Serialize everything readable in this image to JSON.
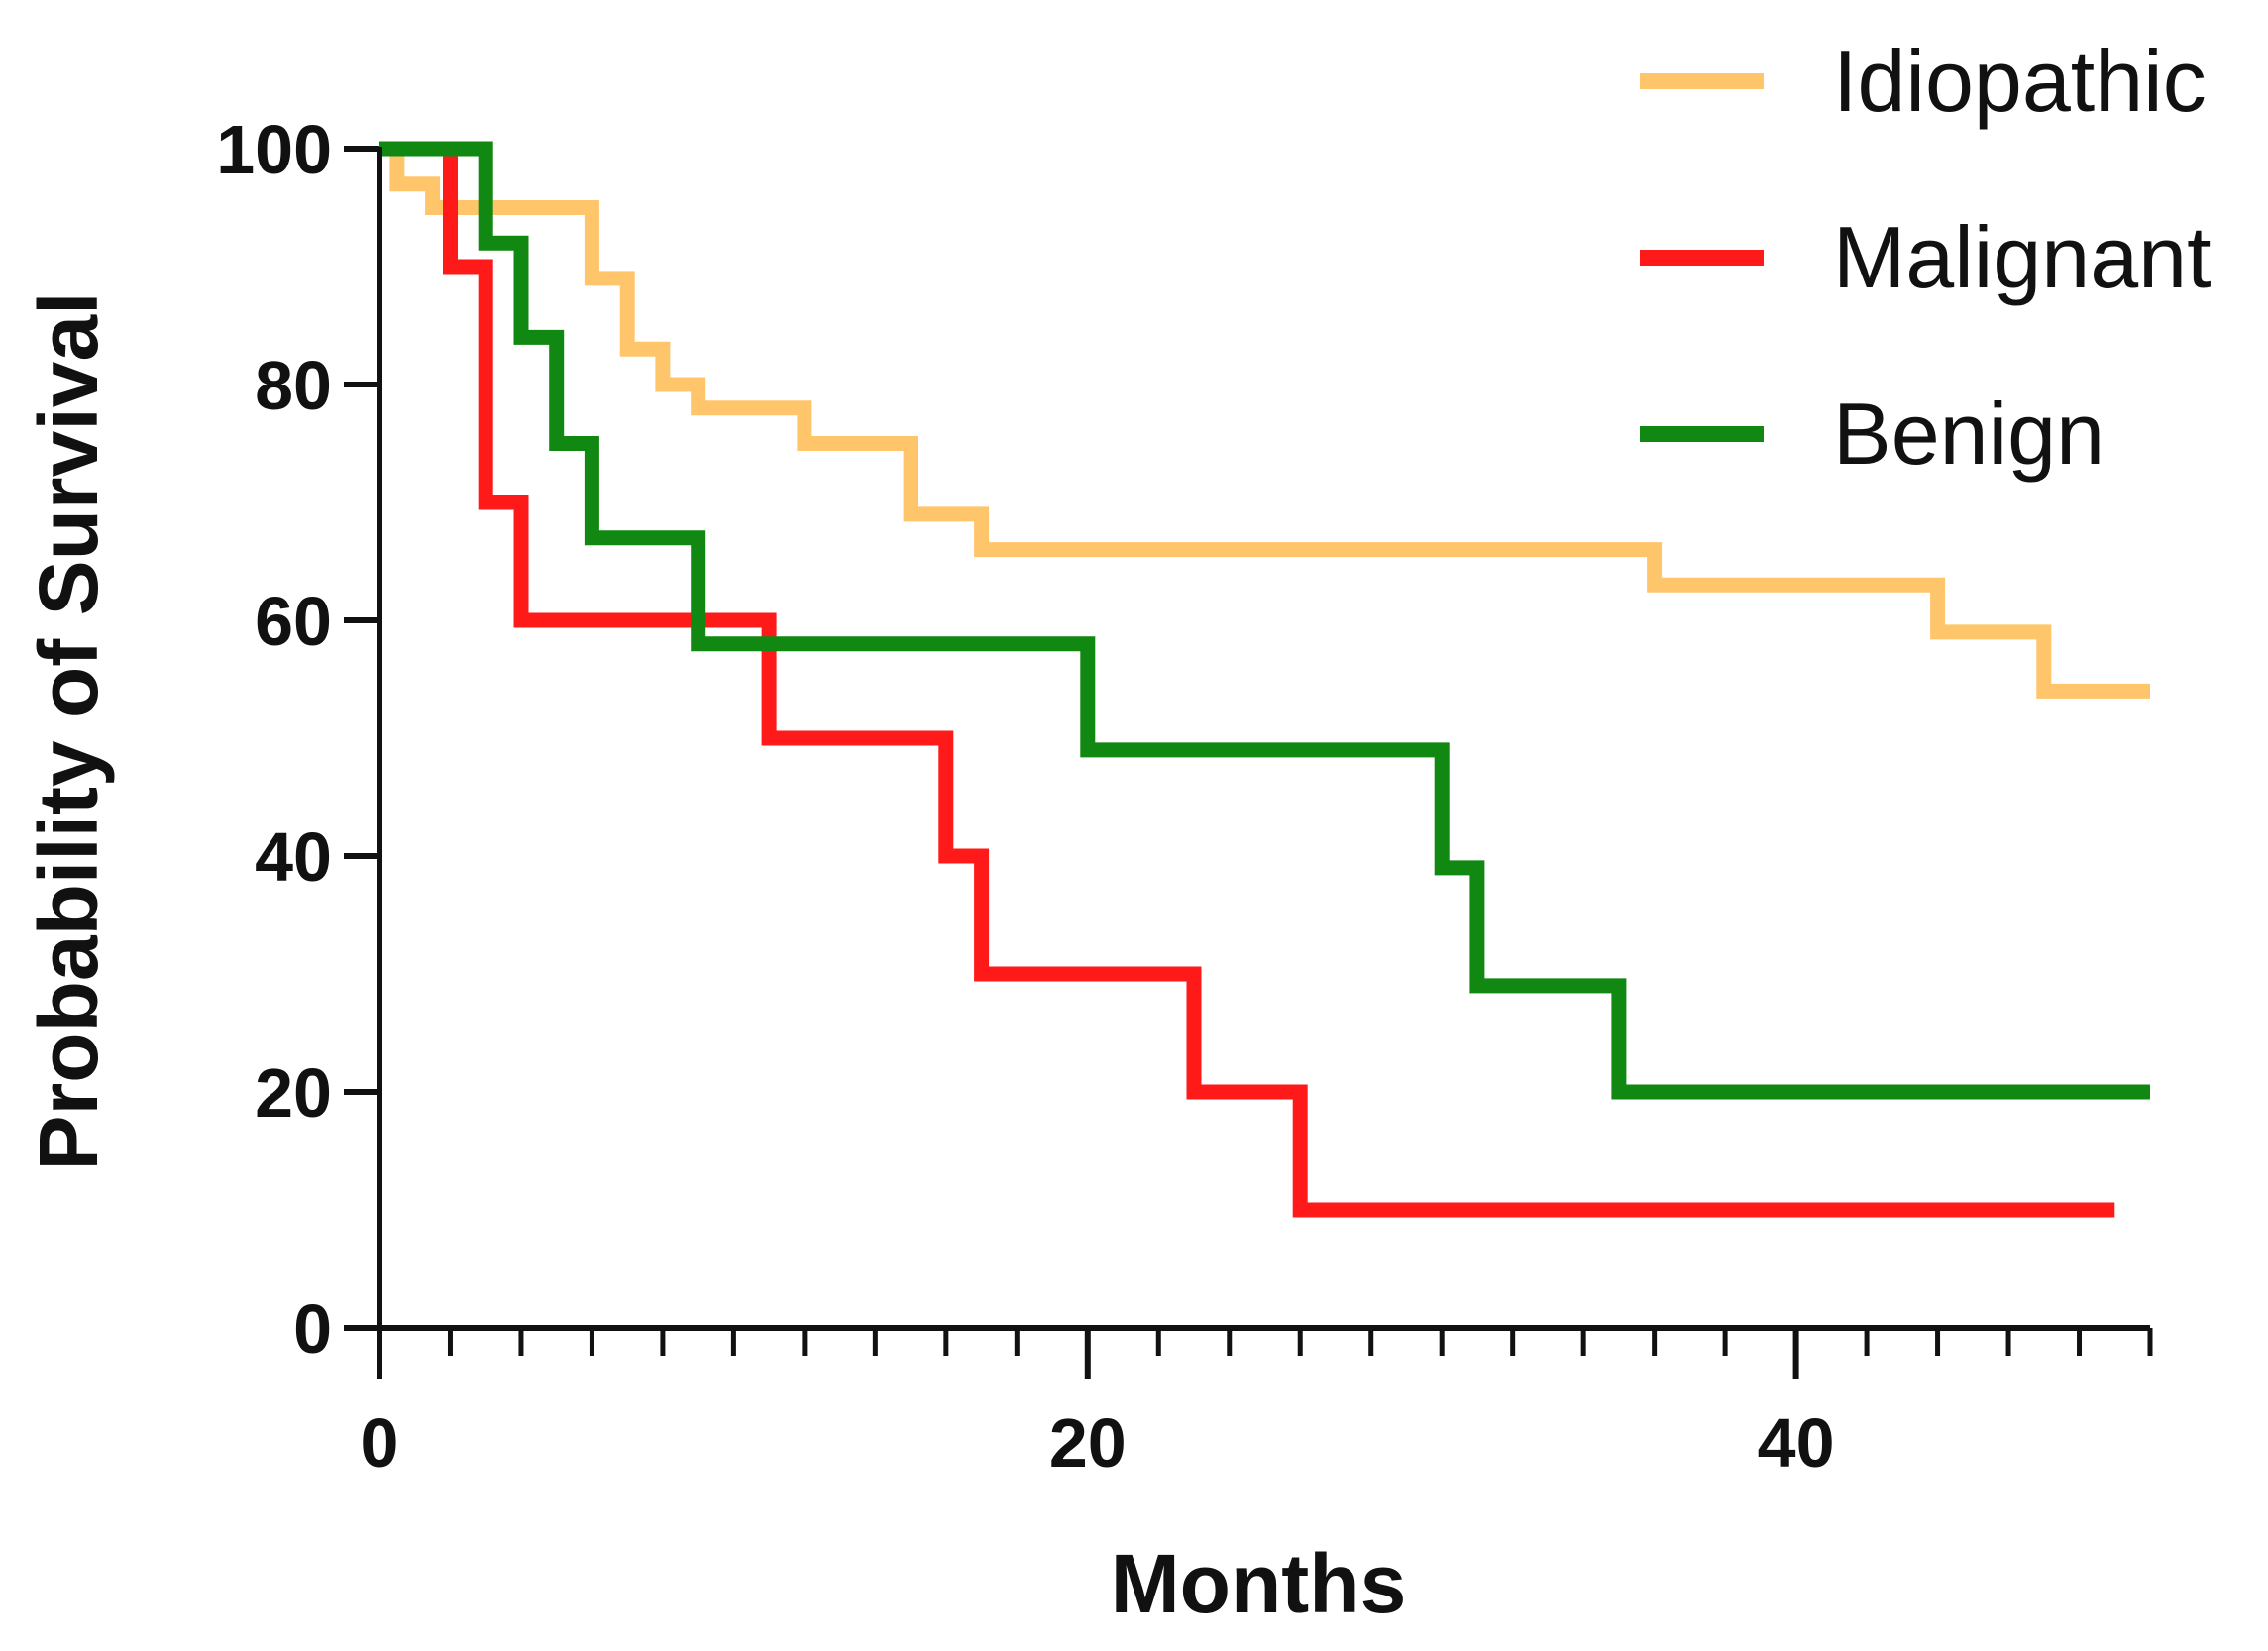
{
  "chart_data": {
    "type": "line",
    "subtype": "kaplan-meier-step",
    "title": "",
    "xlabel": "Months",
    "ylabel": "Probability of Survival",
    "xlim": [
      0,
      50
    ],
    "ylim": [
      0,
      100
    ],
    "x_major_ticks": [
      0,
      20,
      40
    ],
    "x_minor_step": 2,
    "y_ticks": [
      0,
      20,
      40,
      60,
      80,
      100
    ],
    "x_tick_labels": [
      "0",
      "20",
      "40"
    ],
    "y_tick_labels": [
      "0",
      "20",
      "40",
      "60",
      "80",
      "100"
    ],
    "legend_position": "top-right",
    "series": [
      {
        "name": "Idiopathic",
        "color": "#FFC56B",
        "points": [
          [
            0,
            100
          ],
          [
            0.5,
            100
          ],
          [
            0.5,
            97
          ],
          [
            1.5,
            97
          ],
          [
            1.5,
            95
          ],
          [
            6,
            95
          ],
          [
            6,
            89
          ],
          [
            7,
            89
          ],
          [
            7,
            83
          ],
          [
            8,
            83
          ],
          [
            8,
            80
          ],
          [
            9,
            80
          ],
          [
            9,
            78
          ],
          [
            12,
            78
          ],
          [
            12,
            75
          ],
          [
            15,
            75
          ],
          [
            15,
            69
          ],
          [
            17,
            69
          ],
          [
            17,
            66
          ],
          [
            36,
            66
          ],
          [
            36,
            63
          ],
          [
            44,
            63
          ],
          [
            44,
            59
          ],
          [
            47,
            59
          ],
          [
            47,
            54
          ],
          [
            50,
            54
          ]
        ]
      },
      {
        "name": "Malignant",
        "color": "#FF1A1A",
        "points": [
          [
            0,
            100
          ],
          [
            2,
            100
          ],
          [
            2,
            90
          ],
          [
            3,
            90
          ],
          [
            3,
            70
          ],
          [
            4,
            70
          ],
          [
            4,
            60
          ],
          [
            11,
            60
          ],
          [
            11,
            50
          ],
          [
            16,
            50
          ],
          [
            16,
            40
          ],
          [
            17,
            40
          ],
          [
            17,
            30
          ],
          [
            23,
            30
          ],
          [
            23,
            20
          ],
          [
            26,
            20
          ],
          [
            26,
            10
          ],
          [
            49,
            10
          ]
        ]
      },
      {
        "name": "Benign",
        "color": "#118811",
        "points": [
          [
            0,
            100
          ],
          [
            3,
            100
          ],
          [
            3,
            92
          ],
          [
            4,
            92
          ],
          [
            4,
            84
          ],
          [
            5,
            84
          ],
          [
            5,
            75
          ],
          [
            6,
            75
          ],
          [
            6,
            67
          ],
          [
            9,
            67
          ],
          [
            9,
            58
          ],
          [
            20,
            58
          ],
          [
            20,
            49
          ],
          [
            30,
            49
          ],
          [
            30,
            39
          ],
          [
            31,
            39
          ],
          [
            31,
            29
          ],
          [
            35,
            29
          ],
          [
            35,
            20
          ],
          [
            50,
            20
          ]
        ]
      }
    ]
  }
}
